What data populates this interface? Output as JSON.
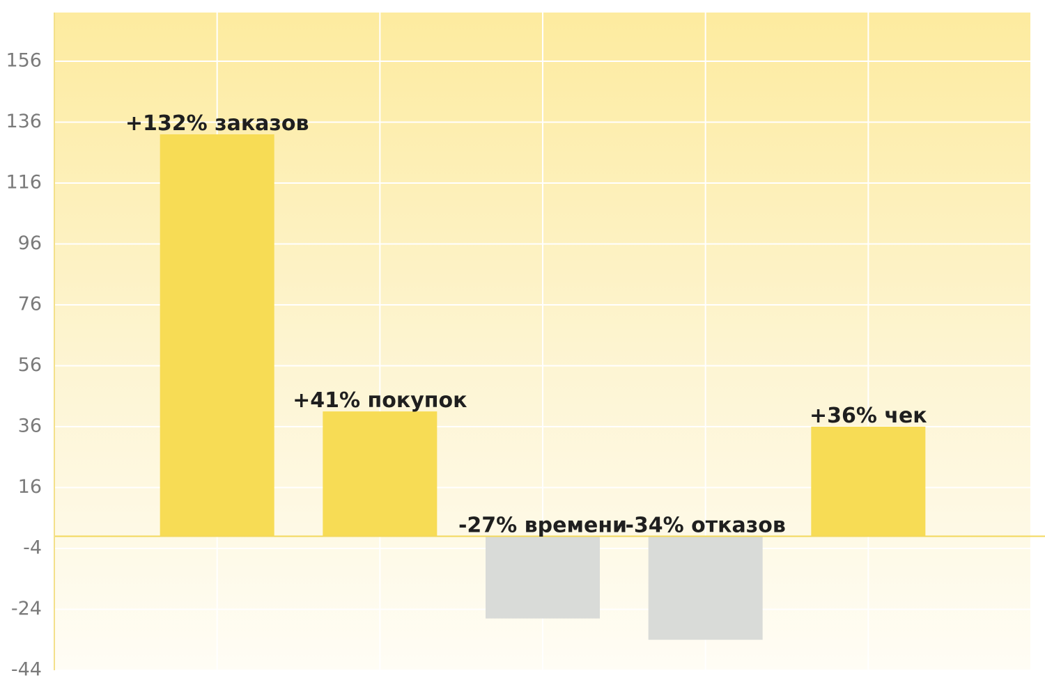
{
  "chart_data": {
    "type": "bar",
    "categories": [
      null,
      null,
      null,
      null,
      null
    ],
    "values": [
      132,
      41,
      -27,
      -34,
      36
    ],
    "value_labels": [
      "+132% заказов",
      "+41% покупок",
      "-27% времени",
      "-34% отказов",
      "+36% чек"
    ],
    "colors": [
      "#f7dc55",
      "#f7dc55",
      "#d9dbd8",
      "#d9dbd8",
      "#f7dc55"
    ],
    "ylim": [
      -44,
      172
    ],
    "yticks": [
      -44,
      -24,
      -4,
      16,
      36,
      56,
      76,
      96,
      116,
      136,
      156
    ],
    "grid": true
  }
}
